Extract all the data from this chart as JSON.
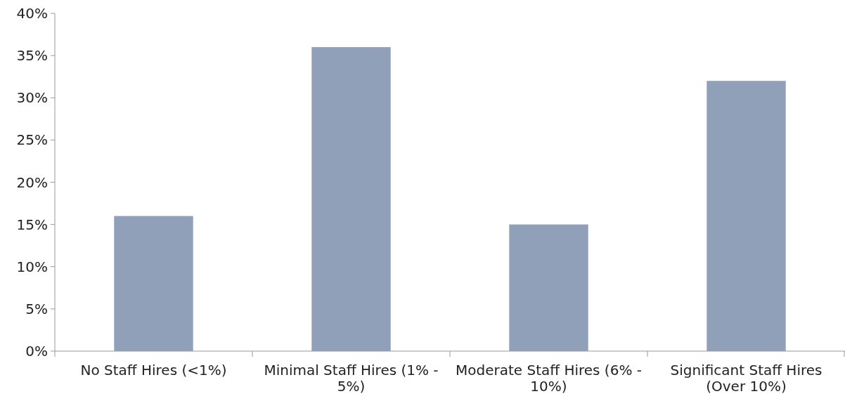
{
  "chart_data": {
    "type": "bar",
    "categories": [
      "No Staff Hires (<1%)",
      "Minimal Staff Hires (1% - 5%)",
      "Moderate Staff Hires (6% - 10%)",
      "Significant Staff Hires (Over 10%)"
    ],
    "values": [
      16,
      36,
      15,
      32
    ],
    "color": "#8fa0b8",
    "ylim": [
      0,
      40
    ],
    "yticks": [
      {
        "value": 0,
        "label": "0%"
      },
      {
        "value": 5,
        "label": "5%"
      },
      {
        "value": 10,
        "label": "10%"
      },
      {
        "value": 15,
        "label": "15%"
      },
      {
        "value": 20,
        "label": "20%"
      },
      {
        "value": 25,
        "label": "25%"
      },
      {
        "value": 30,
        "label": "30%"
      },
      {
        "value": 35,
        "label": "35%"
      },
      {
        "value": 40,
        "label": "40%"
      }
    ]
  }
}
